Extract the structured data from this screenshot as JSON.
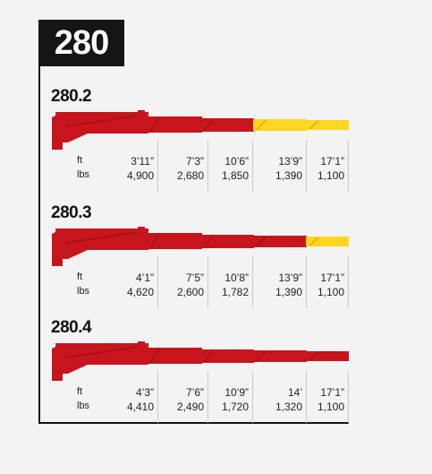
{
  "model": "280",
  "colors": {
    "red": "#c8151d",
    "red_dark": "#8e0d12",
    "yellow": "#ffd51f",
    "yellow_dark": "#c9a200",
    "frame": "#151515"
  },
  "units": {
    "ft": "ft",
    "lbs": "lbs"
  },
  "variants": [
    {
      "name": "280.2",
      "hydraulic_sections": 2,
      "columns": [
        {
          "ft": "3’11”",
          "lbs": "4,900"
        },
        {
          "ft": "7’3”",
          "lbs": "2,680"
        },
        {
          "ft": "10’6”",
          "lbs": "1,850"
        },
        {
          "ft": "13’9”",
          "lbs": "1,390"
        },
        {
          "ft": "17’1”",
          "lbs": "1,100"
        }
      ]
    },
    {
      "name": "280.3",
      "hydraulic_sections": 3,
      "columns": [
        {
          "ft": "4’1”",
          "lbs": "4,620"
        },
        {
          "ft": "7’5”",
          "lbs": "2,600"
        },
        {
          "ft": "10’8”",
          "lbs": "1,782"
        },
        {
          "ft": "13’9”",
          "lbs": "1,390"
        },
        {
          "ft": "17’1”",
          "lbs": "1,100"
        }
      ]
    },
    {
      "name": "280.4",
      "hydraulic_sections": 4,
      "columns": [
        {
          "ft": "4’3”",
          "lbs": "4,410"
        },
        {
          "ft": "7’6”",
          "lbs": "2,490"
        },
        {
          "ft": "10’9”",
          "lbs": "1,720"
        },
        {
          "ft": "14’",
          "lbs": "1,320"
        },
        {
          "ft": "17’1”",
          "lbs": "1,100"
        }
      ]
    }
  ]
}
